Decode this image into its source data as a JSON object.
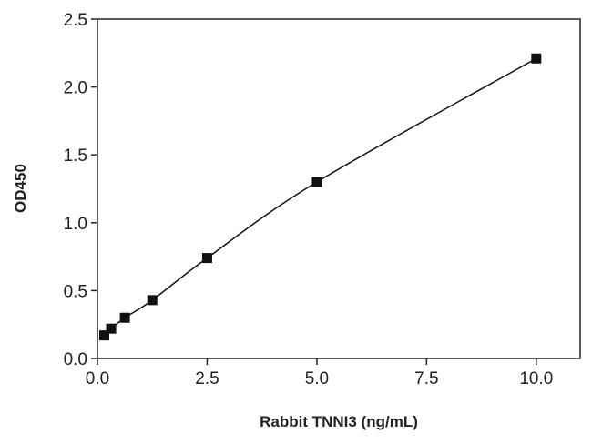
{
  "chart_data": {
    "type": "scatter",
    "title": "",
    "xlabel": "Rabbit TNNI3 (ng/mL)",
    "ylabel": "OD450",
    "xlim": [
      0,
      11
    ],
    "ylim": [
      0,
      2.5
    ],
    "x_ticks": [
      "0.0",
      "2.5",
      "5.0",
      "7.5",
      "10.0"
    ],
    "y_ticks": [
      "0.0",
      "0.5",
      "1.0",
      "1.5",
      "2.0",
      "2.5"
    ],
    "grid": false,
    "legend": "none",
    "fit_curve": true,
    "series": [
      {
        "x": [
          0.156,
          0.3125,
          0.625,
          1.25,
          2.5,
          5.0,
          10.0
        ],
        "y": [
          0.17,
          0.22,
          0.3,
          0.43,
          0.74,
          1.3,
          2.21
        ]
      }
    ],
    "colors": {
      "marker": "#111111",
      "curve": "#111111",
      "axis": "#222222"
    }
  }
}
